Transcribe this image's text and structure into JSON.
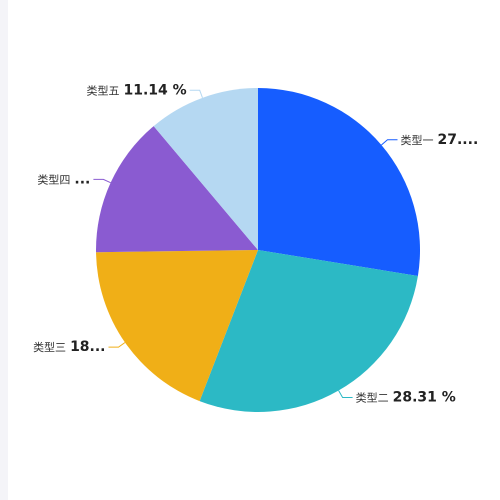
{
  "chart_data": {
    "type": "pie",
    "slices": [
      {
        "name": "类型一",
        "value": 27.56,
        "display": "27....",
        "color": "#165DFF"
      },
      {
        "name": "类型二",
        "value": 28.31,
        "display": "28.31 %",
        "color": "#2CB9C5"
      },
      {
        "name": "类型三",
        "value": 18.91,
        "display": "18...",
        "color": "#F0AF17"
      },
      {
        "name": "类型四",
        "value": 14.08,
        "display": "...",
        "color": "#8A5BD1"
      },
      {
        "name": "类型五",
        "value": 11.14,
        "display": "11.14 %",
        "color": "#B5D8F2"
      }
    ]
  }
}
